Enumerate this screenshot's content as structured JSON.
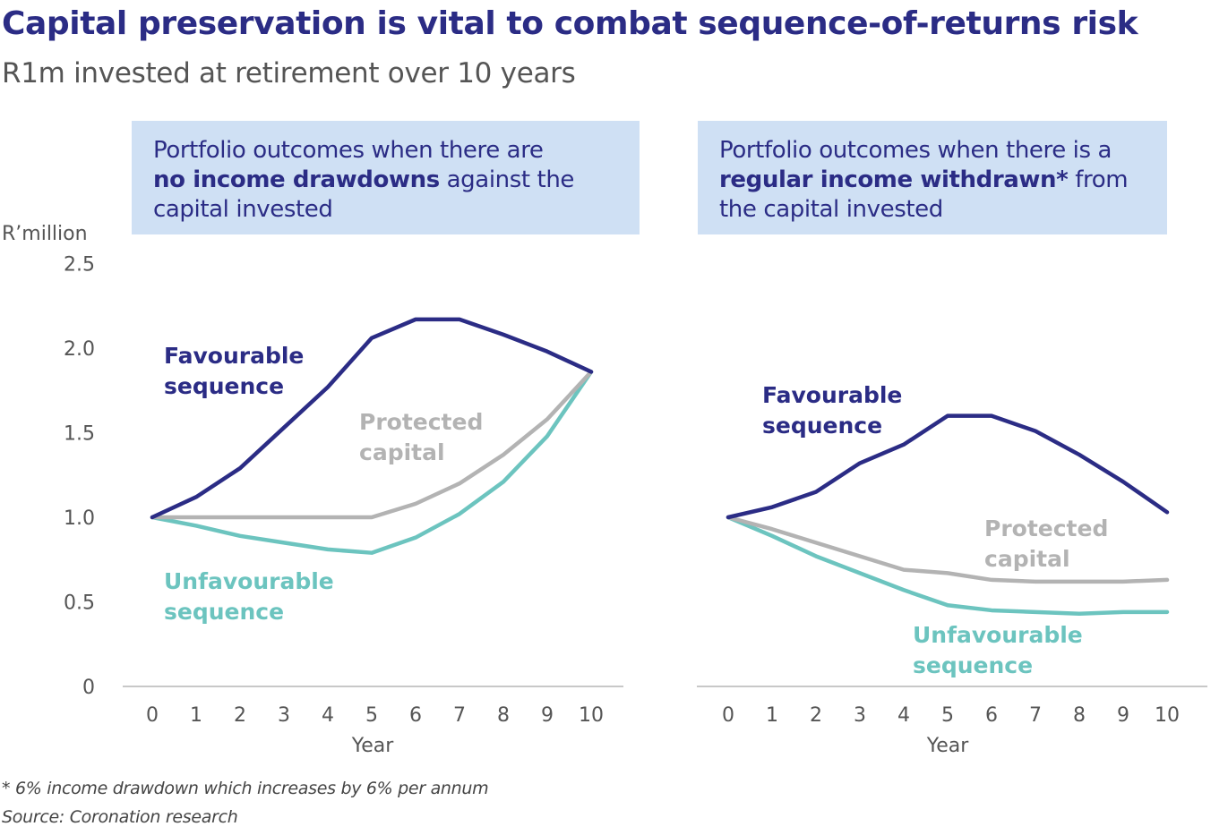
{
  "header": {
    "title": "Capital preservation is vital to combat sequence-of-returns risk",
    "subtitle": "R1m invested at retirement over 10 years"
  },
  "colors": {
    "favourable": "#2b2c85",
    "protected": "#b3b3b3",
    "unfavourable": "#6cc4bf",
    "box_bg": "#cfe0f4",
    "axis": "#c8c8c8"
  },
  "panels": [
    {
      "box": {
        "line1": "Portfolio outcomes when there are",
        "bold": "no income drawdowns",
        "after_bold": " against the",
        "line3": "capital invested"
      }
    },
    {
      "box": {
        "line1": "Portfolio outcomes when there is a",
        "bold": "regular income withdrawn*",
        "after_bold": " from",
        "line3": "the capital invested"
      }
    }
  ],
  "footnotes": {
    "note": "* 6% income drawdown which increases by 6% per annum",
    "source": "Source: Coronation research"
  },
  "chart_data": [
    {
      "type": "line",
      "title": "Portfolio outcomes when there are no income drawdowns against the capital invested",
      "xlabel": "Year",
      "ylabel": "R’million",
      "ylim": [
        0,
        2.5
      ],
      "yticks": [
        "0",
        "0.5",
        "1.0",
        "1.5",
        "2.0",
        "2.5"
      ],
      "ytick_values": [
        0,
        0.5,
        1.0,
        1.5,
        2.0,
        2.5
      ],
      "x": [
        0,
        1,
        2,
        3,
        4,
        5,
        6,
        7,
        8,
        9,
        10
      ],
      "xticks": [
        "0",
        "1",
        "2",
        "3",
        "4",
        "5",
        "6",
        "7",
        "8",
        "9",
        "10"
      ],
      "grid": false,
      "series": [
        {
          "name": "Favourable sequence",
          "label_lines": [
            "Favourable",
            "sequence"
          ],
          "color_key": "favourable",
          "values": [
            1.0,
            1.12,
            1.29,
            1.53,
            1.77,
            2.06,
            2.17,
            2.17,
            2.08,
            1.98,
            1.86
          ]
        },
        {
          "name": "Protected capital",
          "label_lines": [
            "Protected",
            "capital"
          ],
          "color_key": "protected",
          "values": [
            1.0,
            1.0,
            1.0,
            1.0,
            1.0,
            1.0,
            1.08,
            1.2,
            1.37,
            1.58,
            1.86
          ]
        },
        {
          "name": "Unfavourable sequence",
          "label_lines": [
            "Unfavourable",
            "sequence"
          ],
          "color_key": "unfavourable",
          "values": [
            1.0,
            0.95,
            0.89,
            0.85,
            0.81,
            0.79,
            0.88,
            1.02,
            1.21,
            1.48,
            1.86
          ]
        }
      ]
    },
    {
      "type": "line",
      "title": "Portfolio outcomes when there is a regular income withdrawn* from the capital invested",
      "xlabel": "Year",
      "ylabel": "",
      "ylim": [
        0,
        2.5
      ],
      "x": [
        0,
        1,
        2,
        3,
        4,
        5,
        6,
        7,
        8,
        9,
        10
      ],
      "xticks": [
        "0",
        "1",
        "2",
        "3",
        "4",
        "5",
        "6",
        "7",
        "8",
        "9",
        "10"
      ],
      "grid": false,
      "series": [
        {
          "name": "Favourable sequence",
          "label_lines": [
            "Favourable",
            "sequence"
          ],
          "color_key": "favourable",
          "values": [
            1.0,
            1.06,
            1.15,
            1.32,
            1.43,
            1.6,
            1.6,
            1.51,
            1.37,
            1.21,
            1.03
          ]
        },
        {
          "name": "Protected capital",
          "label_lines": [
            "Protected",
            "capital"
          ],
          "color_key": "protected",
          "values": [
            1.0,
            0.93,
            0.85,
            0.77,
            0.69,
            0.67,
            0.63,
            0.62,
            0.62,
            0.62,
            0.63
          ]
        },
        {
          "name": "Unfavourable sequence",
          "label_lines": [
            "Unfavourable",
            "sequence"
          ],
          "color_key": "unfavourable",
          "values": [
            1.0,
            0.89,
            0.77,
            0.67,
            0.57,
            0.48,
            0.45,
            0.44,
            0.43,
            0.44,
            0.44
          ]
        }
      ]
    }
  ]
}
